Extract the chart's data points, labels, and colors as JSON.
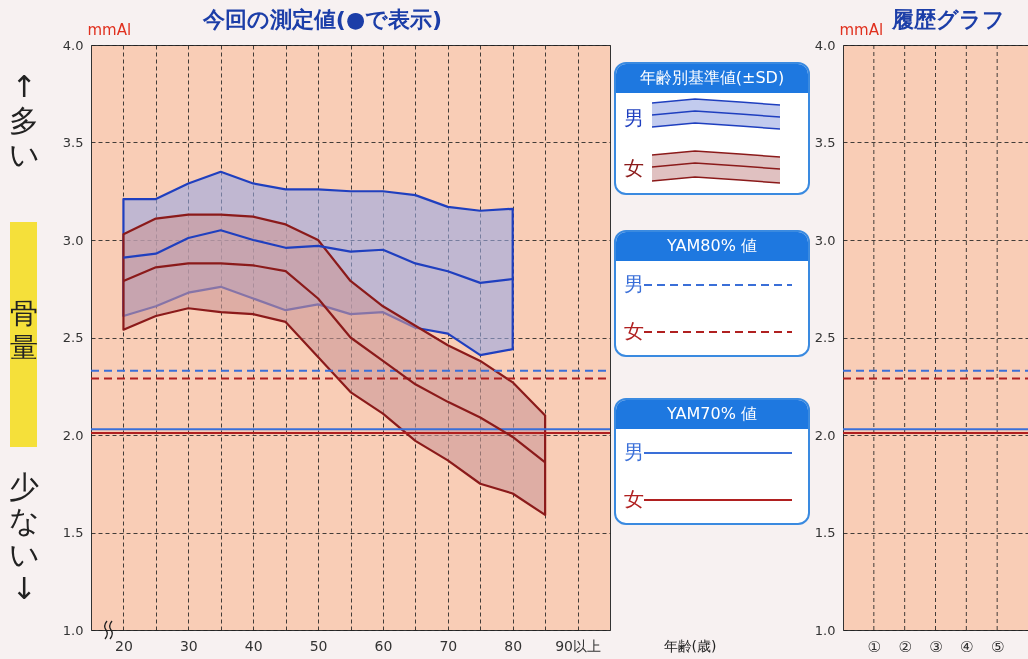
{
  "chart_data": [
    {
      "type": "line",
      "title": "今回の測定値(●で表示)",
      "xlabel": "年齢(歳)",
      "ylabel": "mmAl",
      "legend_title": "年齢別基準値(±SD)",
      "legend": "right",
      "grid": true,
      "marker": "none",
      "line_style": "solid",
      "annotations": [
        "↑多い",
        "骨量",
        "少ない↓",
        "YAM80% 値",
        "YAM70% 値"
      ],
      "xlim": [
        15,
        95
      ],
      "xticks": [
        20,
        {
          "value": 25,
          "label": null
        },
        30,
        {
          "value": 35,
          "label": null
        },
        40,
        {
          "value": 45,
          "label": null
        },
        50,
        {
          "value": 55,
          "label": null
        },
        60,
        {
          "value": 65,
          "label": null
        },
        70,
        {
          "value": 75,
          "label": null
        },
        80,
        {
          "value": 85,
          "label": null
        },
        {
          "value": 90,
          "label": "90以上"
        }
      ],
      "ylim": [
        1,
        4
      ],
      "yticks": [
        {
          "value": 1,
          "label": "1.0"
        },
        {
          "value": 1.5,
          "label": "1.5"
        },
        {
          "value": 2,
          "label": "2.0"
        },
        {
          "value": 2.5,
          "label": "2.5"
        },
        {
          "value": 3,
          "label": "3.0"
        },
        {
          "value": 3.5,
          "label": "3.5"
        },
        {
          "value": 4,
          "label": "4.0"
        }
      ],
      "series": [
        {
          "name": "男",
          "color": "#1f3fbf",
          "x": [
            20,
            25,
            30,
            35,
            40,
            45,
            50,
            55,
            60,
            65,
            70,
            75,
            80
          ],
          "values": [
            2.91,
            2.93,
            3.01,
            3.05,
            3.0,
            2.96,
            2.97,
            2.94,
            2.95,
            2.88,
            2.84,
            2.78,
            2.8
          ],
          "lower": [
            2.61,
            2.66,
            2.73,
            2.76,
            2.7,
            2.64,
            2.67,
            2.62,
            2.63,
            2.55,
            2.52,
            2.41,
            2.44
          ],
          "upper": [
            3.21,
            3.21,
            3.29,
            3.35,
            3.29,
            3.26,
            3.26,
            3.25,
            3.25,
            3.23,
            3.17,
            3.15,
            3.16
          ]
        },
        {
          "name": "女",
          "color": "#8b1a1a",
          "x": [
            20,
            25,
            30,
            35,
            40,
            45,
            50,
            55,
            60,
            65,
            70,
            75,
            80,
            85
          ],
          "values": [
            2.79,
            2.86,
            2.88,
            2.88,
            2.87,
            2.84,
            2.7,
            2.5,
            2.38,
            2.26,
            2.17,
            2.09,
            1.99,
            1.86
          ],
          "lower": [
            2.54,
            2.61,
            2.65,
            2.63,
            2.62,
            2.58,
            2.4,
            2.22,
            2.11,
            1.97,
            1.87,
            1.75,
            1.7,
            1.59
          ],
          "upper": [
            3.03,
            3.11,
            3.13,
            3.13,
            3.12,
            3.08,
            3.0,
            2.79,
            2.66,
            2.56,
            2.46,
            2.38,
            2.27,
            2.1
          ]
        }
      ],
      "ref_lines": [
        {
          "axis": "y",
          "value": 2.33,
          "label": "男",
          "color": "#3a6fd8",
          "line_style": "dashed"
        },
        {
          "axis": "y",
          "value": 2.29,
          "label": "女",
          "color": "#b02020",
          "line_style": "dashed"
        },
        {
          "axis": "y",
          "value": 2.03,
          "label": "男",
          "color": "#3a6fd8",
          "line_style": "solid"
        },
        {
          "axis": "y",
          "value": 2.01,
          "label": "女",
          "color": "#b02020",
          "line_style": "solid"
        }
      ]
    },
    {
      "type": "line",
      "title": "履歴グラフ",
      "ylabel": "mmAl",
      "grid": true,
      "categories": [
        "①",
        "②",
        "③",
        "④",
        "⑤"
      ],
      "ylim": [
        1,
        4
      ],
      "yticks": [
        {
          "value": 1,
          "label": "1.0"
        },
        {
          "value": 1.5,
          "label": "1.5"
        },
        {
          "value": 2,
          "label": "2.0"
        },
        {
          "value": 2.5,
          "label": "2.5"
        },
        {
          "value": 3,
          "label": "3.0"
        },
        {
          "value": 3.5,
          "label": "3.5"
        },
        {
          "value": 4,
          "label": "4.0"
        }
      ],
      "ref_lines": [
        {
          "axis": "y",
          "value": 2.33,
          "color": "#3a6fd8",
          "line_style": "dashed"
        },
        {
          "axis": "y",
          "value": 2.29,
          "color": "#b02020",
          "line_style": "dashed"
        },
        {
          "axis": "y",
          "value": 2.03,
          "color": "#3a6fd8",
          "line_style": "solid"
        },
        {
          "axis": "y",
          "value": 2.01,
          "color": "#b02020",
          "line_style": "solid"
        }
      ]
    }
  ]
}
